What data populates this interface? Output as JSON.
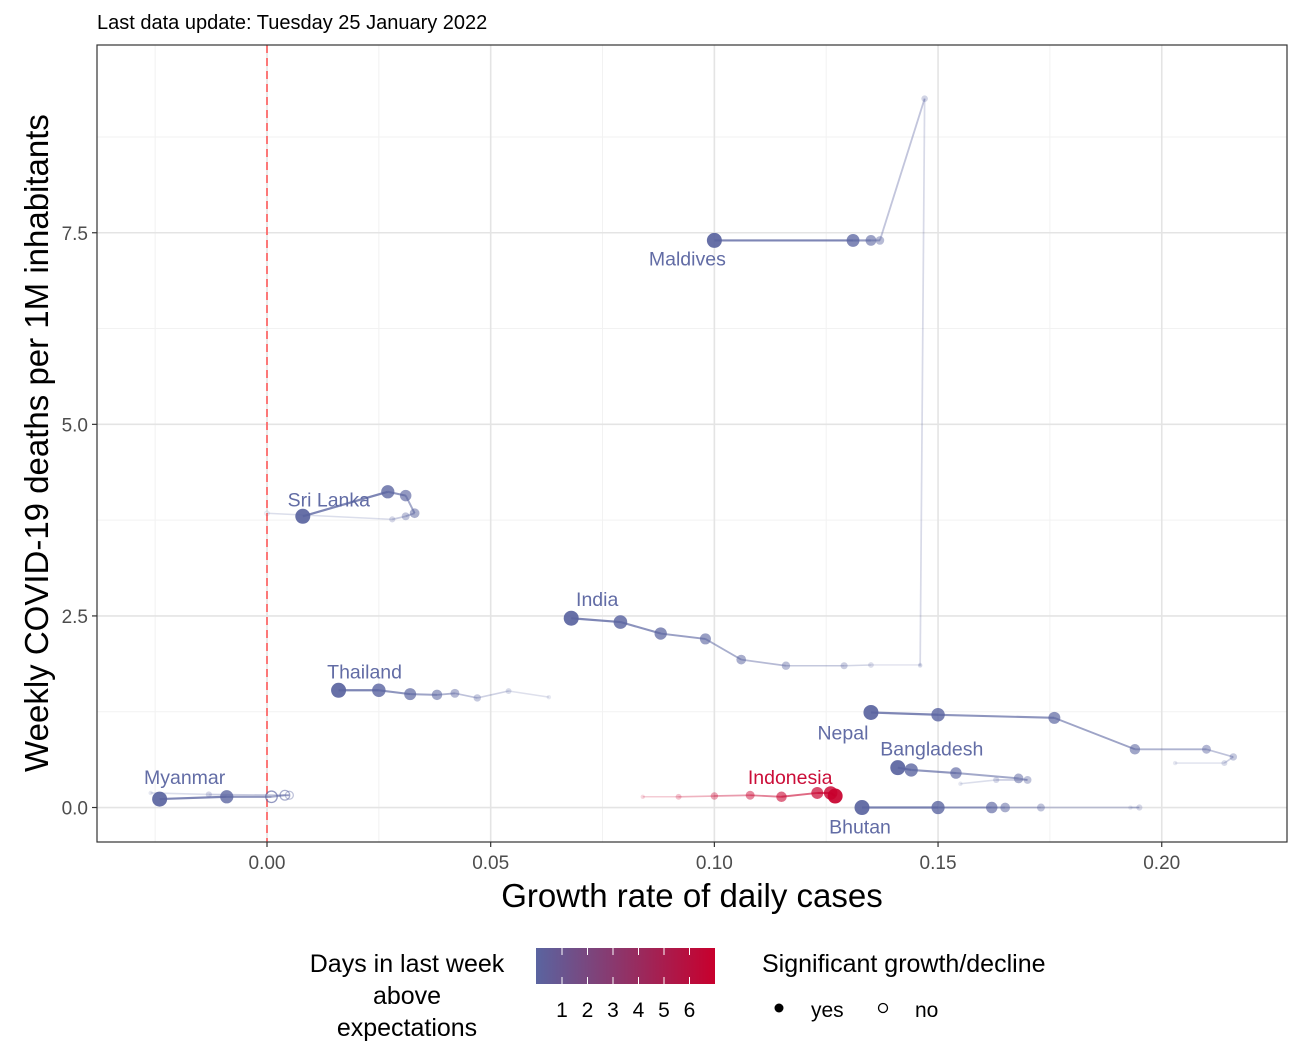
{
  "chart_data": {
    "type": "scatter",
    "subtitle": "Last data update: Tuesday 25 January 2022",
    "xlabel": "Growth rate of daily cases",
    "ylabel": "Weekly COVID-19 deaths per 1M inhabitants",
    "xlim": [
      -0.038,
      0.228
    ],
    "ylim": [
      -0.45,
      9.95
    ],
    "x_ticks": [
      {
        "value": 0.0,
        "label": "0.00"
      },
      {
        "value": 0.05,
        "label": "0.05"
      },
      {
        "value": 0.1,
        "label": "0.10"
      },
      {
        "value": 0.15,
        "label": "0.15"
      },
      {
        "value": 0.2,
        "label": "0.20"
      }
    ],
    "y_ticks": [
      {
        "value": 0.0,
        "label": "0.0"
      },
      {
        "value": 2.5,
        "label": "2.5"
      },
      {
        "value": 5.0,
        "label": "5.0"
      },
      {
        "value": 7.5,
        "label": "7.5"
      }
    ],
    "reference_line": {
      "x": 0,
      "color": "#ff5a5a",
      "style": "dashed"
    },
    "grid": true,
    "color_scale": {
      "low": "#5a64a0",
      "high": "#c8002d"
    },
    "series": [
      {
        "name": "Maldives",
        "color": "#5a64a0",
        "label_pos": "below",
        "x": [
          0.1,
          0.131,
          0.135,
          0.137,
          0.147,
          0.146
        ],
        "y": [
          7.4,
          7.4,
          7.4,
          7.4,
          9.25,
          1.85
        ],
        "significant": [
          true,
          true,
          true,
          true,
          true,
          true
        ]
      },
      {
        "name": "India",
        "color": "#5a64a0",
        "label_pos": "above",
        "x": [
          0.068,
          0.079,
          0.088,
          0.098,
          0.106,
          0.116,
          0.129,
          0.135,
          0.146
        ],
        "y": [
          2.47,
          2.42,
          2.27,
          2.2,
          1.93,
          1.85,
          1.85,
          1.86,
          1.86
        ],
        "significant": [
          true,
          true,
          true,
          true,
          true,
          true,
          true,
          true,
          true
        ]
      },
      {
        "name": "Sri Lanka",
        "color": "#5a64a0",
        "label_pos": "above",
        "x": [
          0.008,
          0.027,
          0.031,
          0.033,
          0.031,
          0.028,
          0.0
        ],
        "y": [
          3.8,
          4.12,
          4.07,
          3.84,
          3.8,
          3.76,
          3.84
        ],
        "significant": [
          true,
          true,
          true,
          true,
          true,
          true,
          false
        ]
      },
      {
        "name": "Thailand",
        "color": "#5a64a0",
        "label_pos": "above",
        "x": [
          0.016,
          0.025,
          0.032,
          0.038,
          0.042,
          0.047,
          0.054,
          0.063
        ],
        "y": [
          1.53,
          1.53,
          1.48,
          1.47,
          1.49,
          1.43,
          1.52,
          1.44
        ],
        "significant": [
          true,
          true,
          true,
          true,
          true,
          true,
          true,
          true
        ]
      },
      {
        "name": "Nepal",
        "color": "#5a64a0",
        "label_pos": "below",
        "x": [
          0.135,
          0.15,
          0.176,
          0.194,
          0.21,
          0.216,
          0.214,
          0.203
        ],
        "y": [
          1.24,
          1.21,
          1.17,
          0.76,
          0.76,
          0.66,
          0.58,
          0.58
        ],
        "significant": [
          true,
          true,
          true,
          true,
          true,
          true,
          true,
          true
        ]
      },
      {
        "name": "Bangladesh",
        "color": "#5a64a0",
        "label_pos": "above",
        "x": [
          0.141,
          0.144,
          0.154,
          0.168,
          0.17,
          0.163,
          0.155
        ],
        "y": [
          0.52,
          0.49,
          0.45,
          0.38,
          0.36,
          0.36,
          0.31
        ],
        "significant": [
          true,
          true,
          true,
          true,
          true,
          true,
          true
        ]
      },
      {
        "name": "Indonesia",
        "color": "#c8002d",
        "label_pos": "above",
        "x": [
          0.127,
          0.126,
          0.123,
          0.115,
          0.108,
          0.1,
          0.092,
          0.084
        ],
        "y": [
          0.15,
          0.19,
          0.19,
          0.14,
          0.16,
          0.15,
          0.14,
          0.14
        ],
        "significant": [
          true,
          true,
          true,
          true,
          true,
          true,
          true,
          true
        ]
      },
      {
        "name": "Bhutan",
        "color": "#5a64a0",
        "label_pos": "below",
        "x": [
          0.133,
          0.15,
          0.162,
          0.165,
          0.173,
          0.195,
          0.193
        ],
        "y": [
          0.0,
          0.0,
          0.0,
          0.0,
          0.0,
          0.0,
          0.0
        ],
        "significant": [
          true,
          true,
          true,
          true,
          true,
          true,
          true
        ]
      },
      {
        "name": "Myanmar",
        "color": "#5a64a0",
        "label_pos": "above",
        "x": [
          -0.024,
          -0.009,
          0.001,
          0.004,
          0.005,
          -0.013,
          -0.026
        ],
        "y": [
          0.11,
          0.14,
          0.14,
          0.16,
          0.16,
          0.17,
          0.19
        ],
        "significant": [
          true,
          true,
          false,
          false,
          false,
          true,
          true
        ]
      }
    ],
    "legend": {
      "color_title": "Days in last week above expectations",
      "color_title_lines": [
        "Days in last week",
        "above",
        "expectations"
      ],
      "color_ticks": [
        "1",
        "2",
        "3",
        "4",
        "5",
        "6"
      ],
      "shape_title": "Significant growth/decline",
      "shape_items": [
        {
          "label": "yes",
          "filled": true
        },
        {
          "label": "no",
          "filled": false
        }
      ]
    }
  }
}
